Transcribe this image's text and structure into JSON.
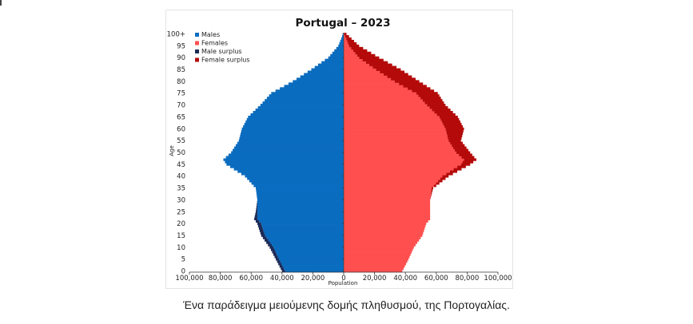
{
  "caption": "Ένα παράδειγμα μειούμενης δομής πληθυσμού, της Πορτογαλίας.",
  "chart_data": {
    "type": "bar",
    "orientation": "horizontal-population-pyramid",
    "title": "Portugal – 2023",
    "xlabel": "Population",
    "ylabel": "Age",
    "xlim": [
      -100000,
      100000
    ],
    "x_tick_values": [
      -100000,
      -80000,
      -60000,
      -40000,
      -20000,
      0,
      20000,
      40000,
      60000,
      80000,
      100000
    ],
    "x_tick_labels": [
      "100,000",
      "80,000",
      "60,000",
      "40,000",
      "20,000",
      "0",
      "20,000",
      "40,000",
      "60,000",
      "80,000",
      "100,000"
    ],
    "y_tick_labels": [
      "0",
      "5",
      "10",
      "15",
      "20",
      "25",
      "30",
      "35",
      "40",
      "45",
      "50",
      "55",
      "60",
      "65",
      "70",
      "75",
      "80",
      "85",
      "90",
      "95",
      "100+"
    ],
    "grid": false,
    "legend_position": "top-left",
    "legend": [
      {
        "label": "Males",
        "color": "#0a6cbf"
      },
      {
        "label": "Females",
        "color": "#ff4f4f"
      },
      {
        "label": "Male surplus",
        "color": "#1c2a56"
      },
      {
        "label": "Female surplus",
        "color": "#b40a0a"
      }
    ],
    "age_anchors": [
      {
        "age": 0,
        "males": 40000,
        "females": 38000
      },
      {
        "age": 5,
        "males": 44000,
        "females": 42000
      },
      {
        "age": 10,
        "males": 48000,
        "females": 45500
      },
      {
        "age": 15,
        "males": 53500,
        "females": 51000
      },
      {
        "age": 20,
        "males": 56000,
        "females": 53500
      },
      {
        "age": 22,
        "males": 58000,
        "females": 56000
      },
      {
        "age": 25,
        "males": 57000,
        "females": 56000
      },
      {
        "age": 30,
        "males": 56000,
        "females": 56000
      },
      {
        "age": 35,
        "males": 57000,
        "females": 58000
      },
      {
        "age": 40,
        "males": 64000,
        "females": 68000
      },
      {
        "age": 45,
        "males": 76000,
        "females": 82000
      },
      {
        "age": 47,
        "males": 78000,
        "females": 86000
      },
      {
        "age": 50,
        "males": 73000,
        "females": 82000
      },
      {
        "age": 55,
        "males": 68000,
        "females": 76000
      },
      {
        "age": 60,
        "males": 66000,
        "females": 78000
      },
      {
        "age": 65,
        "males": 62000,
        "females": 74000
      },
      {
        "age": 70,
        "males": 54000,
        "females": 66000
      },
      {
        "age": 75,
        "males": 47000,
        "females": 61000
      },
      {
        "age": 80,
        "males": 33000,
        "females": 49000
      },
      {
        "age": 85,
        "males": 21000,
        "females": 37000
      },
      {
        "age": 90,
        "males": 10000,
        "females": 23000
      },
      {
        "age": 95,
        "males": 3500,
        "females": 10000
      },
      {
        "age": 100,
        "males": 400,
        "females": 1800
      }
    ]
  }
}
